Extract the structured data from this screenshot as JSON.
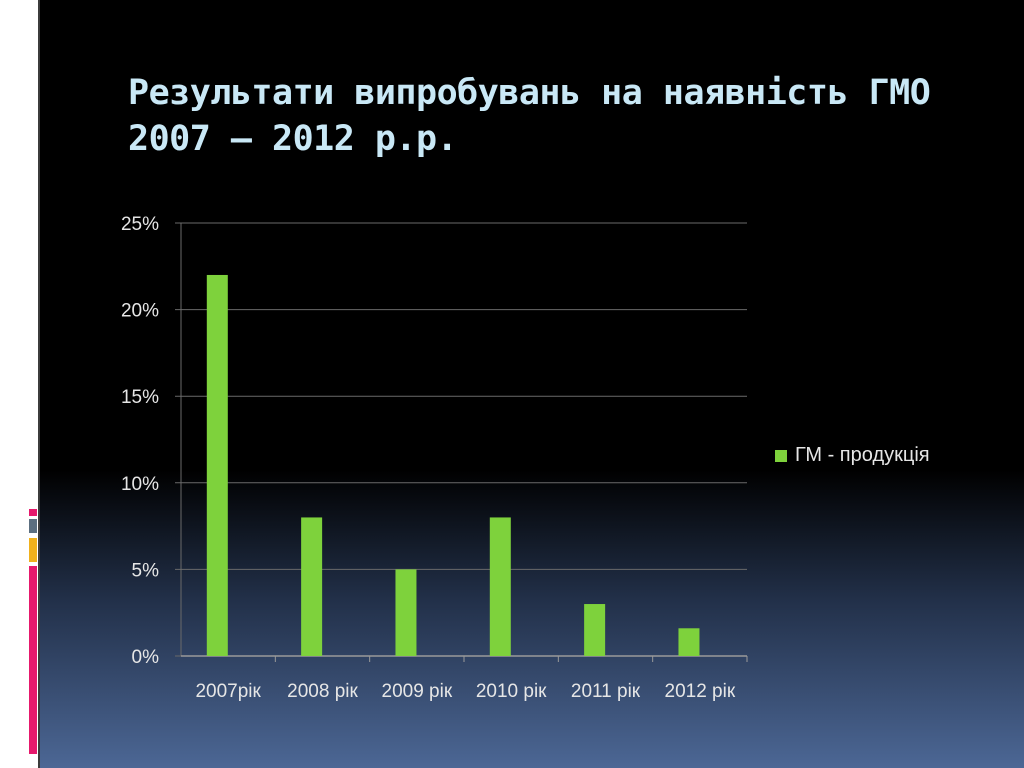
{
  "slide": {
    "title_line1": "Результати випробувань на наявність ГМО",
    "title_line2": "2007 – 2012 р.р."
  },
  "colors": {
    "bar": "#7ed23c",
    "title": "#c9e8f6",
    "text": "#e6e6e6",
    "grid": "#6a6a6a",
    "accent_pink": "#e6196c",
    "accent_slate": "#5c6f80",
    "accent_gold": "#f0b11d"
  },
  "chart_data": {
    "type": "bar",
    "title": "",
    "xlabel": "",
    "ylabel": "",
    "categories": [
      "2007рік",
      "2008 рік",
      "2009 рік",
      "2010 рік",
      "2011 рік",
      "2012 рік"
    ],
    "series": [
      {
        "name": "ГМ - продукція",
        "values": [
          22,
          8,
          5,
          8,
          3,
          1.6
        ]
      }
    ],
    "y_tick_labels": [
      "0%",
      "5%",
      "10%",
      "15%",
      "20%",
      "25%"
    ],
    "ylim": [
      0,
      25
    ],
    "grid": true,
    "legend_position": "right"
  }
}
